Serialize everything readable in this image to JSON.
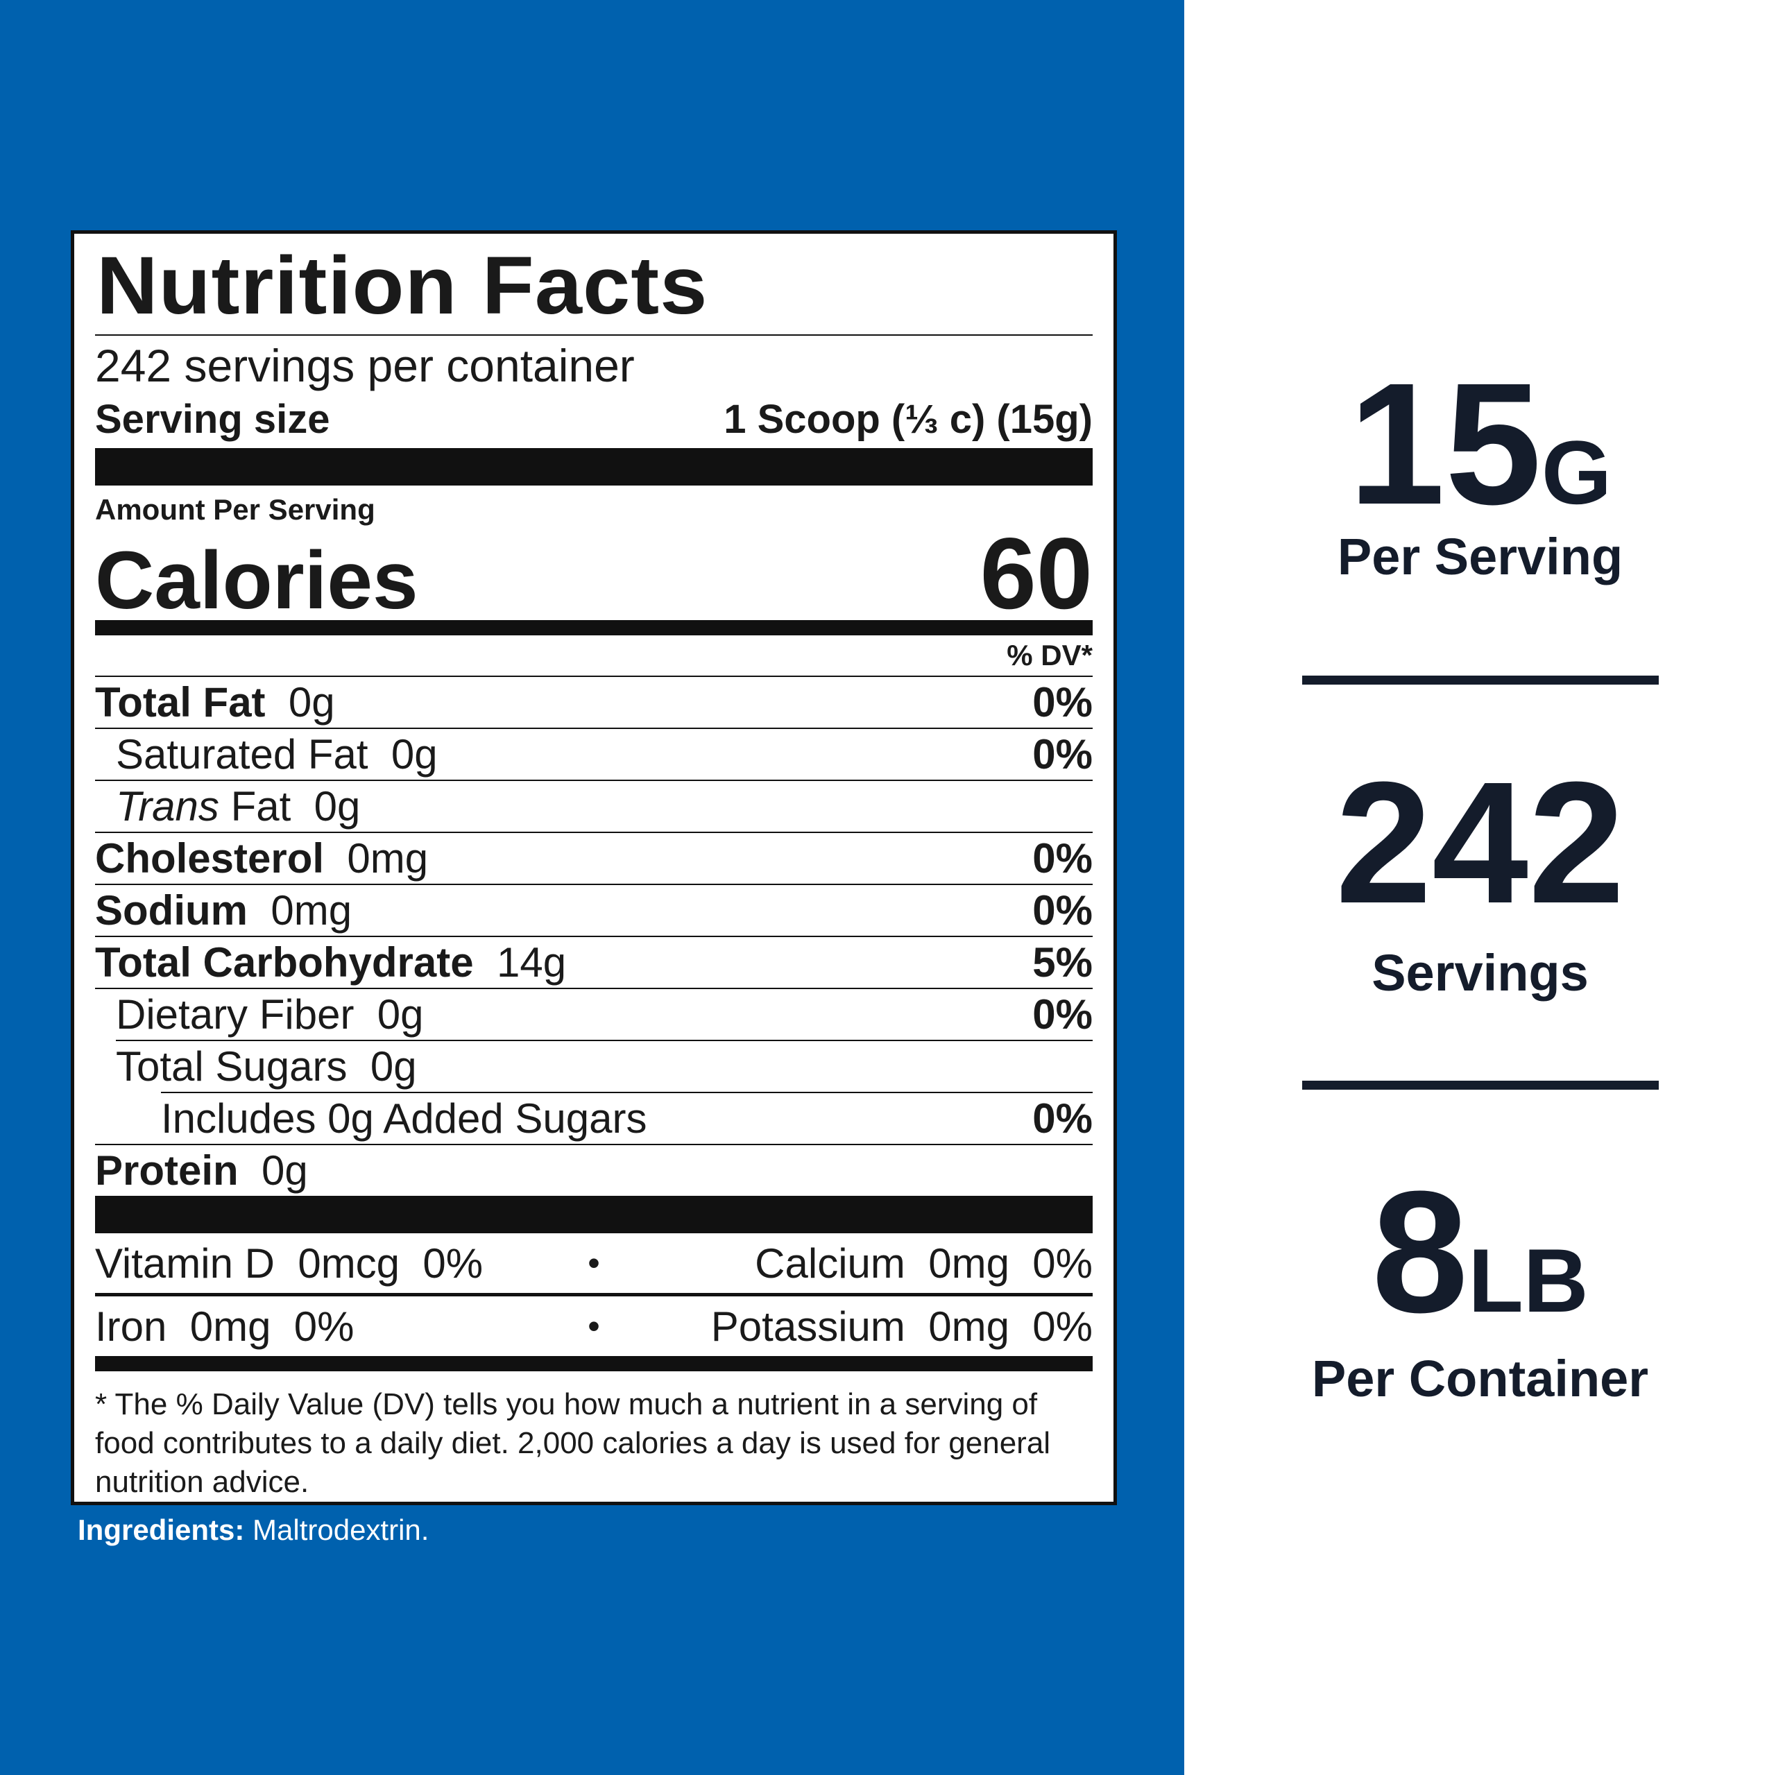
{
  "colors": {
    "panel_blue": "#0061ae",
    "ink": "#141c2b"
  },
  "label": {
    "title": "Nutrition Facts",
    "servings_per_container": "242 servings per container",
    "serving_size_label": "Serving size",
    "serving_size_value": "1 Scoop (⅓ c) (15g)",
    "amount_per_serving": "Amount Per Serving",
    "calories_label": "Calories",
    "calories_value": "60",
    "dv_header": "% DV*",
    "nutrients": [
      {
        "name": "Total Fat",
        "amount": "0g",
        "dv": "0%"
      },
      {
        "name": "Saturated Fat",
        "amount": "0g",
        "dv": "0%"
      },
      {
        "name": "Trans",
        "name_rest": "Fat",
        "amount": "0g",
        "dv": ""
      },
      {
        "name": "Cholesterol",
        "amount": "0mg",
        "dv": "0%"
      },
      {
        "name": "Sodium",
        "amount": "0mg",
        "dv": "0%"
      },
      {
        "name": "Total Carbohydrate",
        "amount": "14g",
        "dv": "5%"
      },
      {
        "name": "Dietary Fiber",
        "amount": "0g",
        "dv": "0%"
      },
      {
        "name": "Total Sugars",
        "amount": "0g",
        "dv": ""
      },
      {
        "name": "Includes 0g Added Sugars",
        "amount": "",
        "dv": "0%"
      },
      {
        "name": "Protein",
        "amount": "0g",
        "dv": ""
      }
    ],
    "vitamins": [
      {
        "left": "Vitamin D  0mcg  0%",
        "sep": "•",
        "right": "Calcium  0mg  0%"
      },
      {
        "left": "Iron  0mg  0%",
        "sep": "•",
        "right": "Potassium  0mg  0%"
      }
    ],
    "footnote": "* The % Daily Value (DV) tells you how much a nutrient in a serving of food contributes to a daily diet. 2,000 calories a day is used for general nutrition advice."
  },
  "ingredients": {
    "label": "Ingredients:",
    "text": " Maltrodextrin."
  },
  "stats": [
    {
      "value": "15",
      "unit": "G",
      "label": "Per Serving"
    },
    {
      "value": "242",
      "unit": "",
      "label": "Servings"
    },
    {
      "value": "8",
      "unit": "LB",
      "label": "Per Container"
    }
  ]
}
